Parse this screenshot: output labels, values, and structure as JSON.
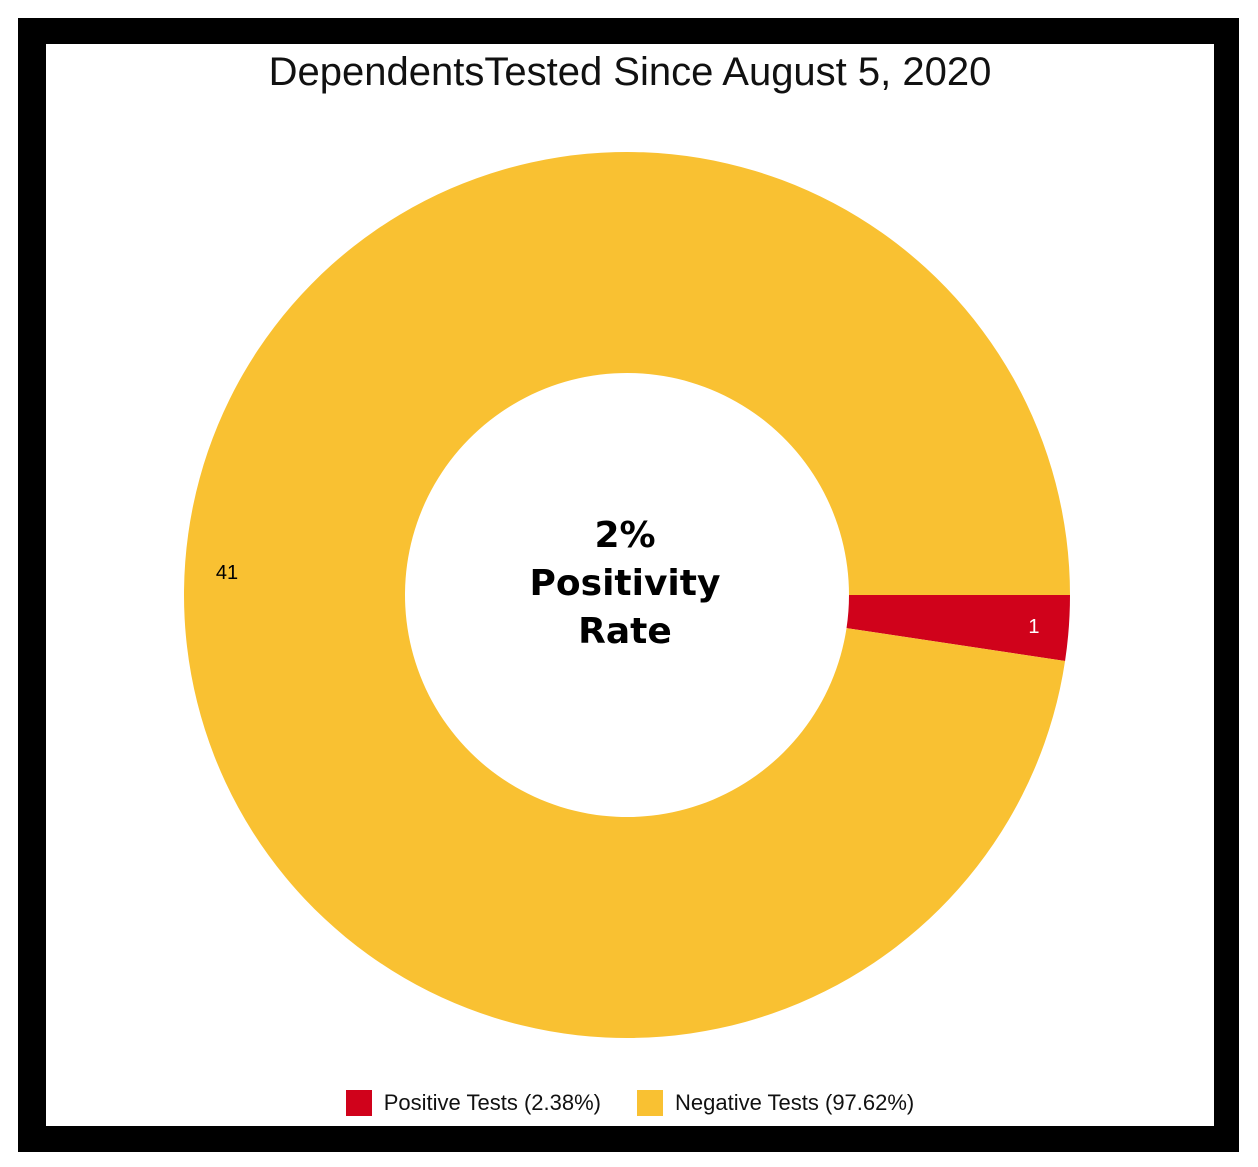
{
  "chart_data": {
    "type": "pie",
    "donut": true,
    "title": "DependentsTested Since August 5, 2020",
    "center_text": [
      "2%",
      "Positivity",
      "Rate"
    ],
    "slices": [
      {
        "label": "Positive Tests (2.38%)",
        "value": 1,
        "color": "#D0021B",
        "label_color": "#ffffff"
      },
      {
        "label": "Negative Tests (97.62%)",
        "value": 41,
        "color": "#F9C132",
        "label_color": "#000000"
      }
    ],
    "legend_position": "bottom"
  }
}
